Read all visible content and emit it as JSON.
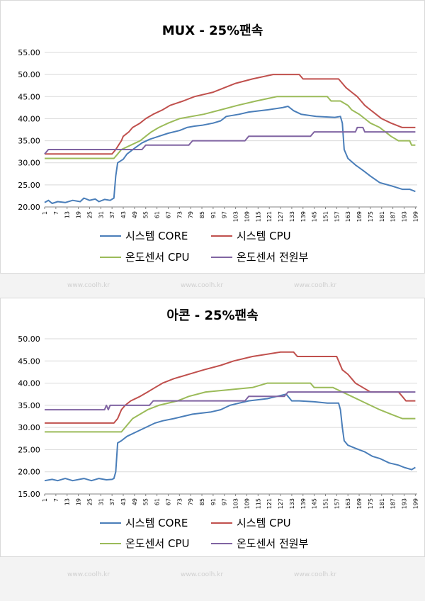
{
  "colors": {
    "core": "#4a7eb9",
    "cpu": "#c0504d",
    "sensor_cpu": "#9bbb59",
    "sensor_power": "#8064a2",
    "grid": "#d9d9d9"
  },
  "watermark": "www.coolh.kr",
  "chart_data": [
    {
      "type": "line",
      "title": "MUX - 25%팬속",
      "ylim": [
        20,
        55
      ],
      "yticks": [
        "20.00",
        "25.00",
        "30.00",
        "35.00",
        "40.00",
        "45.00",
        "50.00",
        "55.00"
      ],
      "xticks": [
        "1",
        "7",
        "13",
        "19",
        "25",
        "31",
        "37",
        "43",
        "49",
        "55",
        "61",
        "67",
        "73",
        "79",
        "85",
        "91",
        "97",
        "103",
        "109",
        "115",
        "121",
        "127",
        "133",
        "139",
        "145",
        "151",
        "157",
        "163",
        "169",
        "175",
        "181",
        "187",
        "193",
        "199"
      ],
      "grid": true,
      "legend_position": "bottom",
      "series": [
        {
          "name": "시스템 CORE",
          "color_key": "core",
          "points": [
            [
              1,
              21
            ],
            [
              3,
              21.5
            ],
            [
              5,
              20.8
            ],
            [
              8,
              21.2
            ],
            [
              12,
              21
            ],
            [
              16,
              21.5
            ],
            [
              20,
              21.2
            ],
            [
              22,
              22
            ],
            [
              25,
              21.5
            ],
            [
              28,
              21.8
            ],
            [
              30,
              21.2
            ],
            [
              33,
              21.7
            ],
            [
              36,
              21.5
            ],
            [
              38,
              22
            ],
            [
              39,
              27
            ],
            [
              40,
              30
            ],
            [
              43,
              30.8
            ],
            [
              45,
              32
            ],
            [
              49,
              33.3
            ],
            [
              53,
              34.5
            ],
            [
              57,
              35.3
            ],
            [
              62,
              36
            ],
            [
              67,
              36.7
            ],
            [
              73,
              37.3
            ],
            [
              77,
              38
            ],
            [
              81,
              38.3
            ],
            [
              85,
              38.5
            ],
            [
              91,
              39
            ],
            [
              95,
              39.5
            ],
            [
              98,
              40.5
            ],
            [
              105,
              41
            ],
            [
              110,
              41.5
            ],
            [
              120,
              42
            ],
            [
              128,
              42.5
            ],
            [
              131,
              42.8
            ],
            [
              134,
              41.8
            ],
            [
              138,
              41
            ],
            [
              146,
              40.5
            ],
            [
              156,
              40.3
            ],
            [
              159,
              40.5
            ],
            [
              160,
              39
            ],
            [
              161,
              33
            ],
            [
              163,
              31
            ],
            [
              167,
              29.5
            ],
            [
              171,
              28.3
            ],
            [
              175,
              27
            ],
            [
              180,
              25.5
            ],
            [
              186,
              24.8
            ],
            [
              192,
              24
            ],
            [
              196,
              24
            ],
            [
              199,
              23.5
            ]
          ]
        },
        {
          "name": "시스템 CPU",
          "color_key": "cpu",
          "points": [
            [
              1,
              32
            ],
            [
              37,
              32
            ],
            [
              39,
              33
            ],
            [
              42,
              35
            ],
            [
              43,
              36
            ],
            [
              46,
              37
            ],
            [
              48,
              38
            ],
            [
              52,
              39
            ],
            [
              55,
              40
            ],
            [
              59,
              41
            ],
            [
              64,
              42
            ],
            [
              68,
              43
            ],
            [
              75,
              44
            ],
            [
              81,
              45
            ],
            [
              91,
              46
            ],
            [
              97,
              47
            ],
            [
              103,
              48
            ],
            [
              112,
              49
            ],
            [
              123,
              50
            ],
            [
              137,
              50
            ],
            [
              139,
              49
            ],
            [
              158,
              49
            ],
            [
              160,
              48
            ],
            [
              162,
              47
            ],
            [
              165,
              46
            ],
            [
              168,
              45
            ],
            [
              170,
              44
            ],
            [
              172,
              43
            ],
            [
              175,
              42
            ],
            [
              178,
              41
            ],
            [
              181,
              40
            ],
            [
              186,
              39
            ],
            [
              192,
              38
            ],
            [
              199,
              38
            ]
          ]
        },
        {
          "name": "온도센서 CPU",
          "color_key": "sensor_cpu",
          "points": [
            [
              1,
              31
            ],
            [
              38,
              31
            ],
            [
              40,
              32
            ],
            [
              42,
              33
            ],
            [
              47,
              34
            ],
            [
              52,
              35
            ],
            [
              55,
              36
            ],
            [
              58,
              37
            ],
            [
              62,
              38
            ],
            [
              67,
              39
            ],
            [
              73,
              40
            ],
            [
              86,
              41
            ],
            [
              95,
              42
            ],
            [
              104,
              43
            ],
            [
              114,
              44
            ],
            [
              125,
              45
            ],
            [
              152,
              45
            ],
            [
              154,
              44
            ],
            [
              159,
              44
            ],
            [
              163,
              43
            ],
            [
              165,
              42
            ],
            [
              169,
              41
            ],
            [
              172,
              40
            ],
            [
              175,
              39
            ],
            [
              180,
              38
            ],
            [
              186,
              36
            ],
            [
              190,
              35
            ],
            [
              196,
              35
            ],
            [
              197,
              34
            ],
            [
              199,
              34
            ]
          ]
        },
        {
          "name": "온도센서 전원부",
          "color_key": "sensor_power",
          "points": [
            [
              1,
              32
            ],
            [
              3,
              33
            ],
            [
              53,
              33
            ],
            [
              55,
              34
            ],
            [
              78,
              34
            ],
            [
              80,
              35
            ],
            [
              108,
              35
            ],
            [
              110,
              36
            ],
            [
              143,
              36
            ],
            [
              145,
              37
            ],
            [
              167,
              37
            ],
            [
              168,
              38
            ],
            [
              171,
              38
            ],
            [
              172,
              37
            ],
            [
              199,
              37
            ]
          ]
        }
      ]
    },
    {
      "type": "line",
      "title": "아콘 - 25%팬속",
      "ylim": [
        15,
        50
      ],
      "yticks": [
        "15.00",
        "20.00",
        "25.00",
        "30.00",
        "35.00",
        "40.00",
        "45.00",
        "50.00"
      ],
      "xticks": [
        "1",
        "7",
        "13",
        "19",
        "25",
        "31",
        "37",
        "43",
        "49",
        "55",
        "61",
        "67",
        "73",
        "79",
        "85",
        "91",
        "97",
        "103",
        "109",
        "115",
        "121",
        "127",
        "133",
        "139",
        "145",
        "151",
        "157",
        "163",
        "169",
        "175",
        "181",
        "187",
        "193",
        "199"
      ],
      "grid": true,
      "legend_position": "bottom",
      "series": [
        {
          "name": "시스템 CORE",
          "color_key": "core",
          "points": [
            [
              1,
              18
            ],
            [
              5,
              18.3
            ],
            [
              8,
              18
            ],
            [
              12,
              18.5
            ],
            [
              16,
              18
            ],
            [
              22,
              18.5
            ],
            [
              26,
              18
            ],
            [
              30,
              18.5
            ],
            [
              34,
              18.2
            ],
            [
              37,
              18.3
            ],
            [
              38,
              18.5
            ],
            [
              39,
              20
            ],
            [
              40,
              26.5
            ],
            [
              42,
              27
            ],
            [
              45,
              28
            ],
            [
              50,
              29
            ],
            [
              55,
              30
            ],
            [
              60,
              31
            ],
            [
              64,
              31.5
            ],
            [
              70,
              32
            ],
            [
              75,
              32.5
            ],
            [
              80,
              33
            ],
            [
              90,
              33.5
            ],
            [
              95,
              34
            ],
            [
              100,
              35
            ],
            [
              105,
              35.5
            ],
            [
              110,
              36
            ],
            [
              120,
              36.5
            ],
            [
              125,
              37
            ],
            [
              130,
              37.5
            ],
            [
              133,
              36
            ],
            [
              137,
              36
            ],
            [
              145,
              35.8
            ],
            [
              152,
              35.5
            ],
            [
              158,
              35.5
            ],
            [
              159,
              34
            ],
            [
              160,
              30
            ],
            [
              161,
              27
            ],
            [
              163,
              26
            ],
            [
              167,
              25.3
            ],
            [
              172,
              24.5
            ],
            [
              176,
              23.5
            ],
            [
              180,
              23
            ],
            [
              185,
              22
            ],
            [
              190,
              21.5
            ],
            [
              193,
              21
            ],
            [
              197,
              20.5
            ],
            [
              199,
              21
            ]
          ]
        },
        {
          "name": "시스템 CPU",
          "color_key": "cpu",
          "points": [
            [
              1,
              31
            ],
            [
              38,
              31
            ],
            [
              40,
              32
            ],
            [
              42,
              34
            ],
            [
              44,
              35
            ],
            [
              47,
              36
            ],
            [
              52,
              37
            ],
            [
              56,
              38
            ],
            [
              60,
              39
            ],
            [
              64,
              40
            ],
            [
              70,
              41
            ],
            [
              78,
              42
            ],
            [
              86,
              43
            ],
            [
              95,
              44
            ],
            [
              102,
              45
            ],
            [
              112,
              46
            ],
            [
              127,
              47
            ],
            [
              134,
              47
            ],
            [
              136,
              46
            ],
            [
              157,
              46
            ],
            [
              158,
              45
            ],
            [
              160,
              43
            ],
            [
              163,
              42
            ],
            [
              165,
              41
            ],
            [
              167,
              40
            ],
            [
              171,
              39
            ],
            [
              175,
              38
            ],
            [
              190,
              38
            ],
            [
              192,
              37
            ],
            [
              194,
              36
            ],
            [
              199,
              36
            ]
          ]
        },
        {
          "name": "온도센서 CPU",
          "color_key": "sensor_cpu",
          "points": [
            [
              1,
              29
            ],
            [
              42,
              29
            ],
            [
              44,
              30
            ],
            [
              48,
              32
            ],
            [
              52,
              33
            ],
            [
              56,
              34
            ],
            [
              62,
              35
            ],
            [
              72,
              36
            ],
            [
              78,
              37
            ],
            [
              87,
              38
            ],
            [
              112,
              39
            ],
            [
              120,
              40
            ],
            [
              143,
              40
            ],
            [
              145,
              39
            ],
            [
              155,
              39
            ],
            [
              160,
              38
            ],
            [
              165,
              37
            ],
            [
              170,
              36
            ],
            [
              175,
              35
            ],
            [
              180,
              34
            ],
            [
              186,
              33
            ],
            [
              192,
              32
            ],
            [
              199,
              32
            ]
          ]
        },
        {
          "name": "온도센서 전원부",
          "color_key": "sensor_power",
          "points": [
            [
              1,
              34
            ],
            [
              33,
              34
            ],
            [
              34,
              35
            ],
            [
              35,
              34
            ],
            [
              36,
              35
            ],
            [
              57,
              35
            ],
            [
              59,
              36
            ],
            [
              108,
              36
            ],
            [
              110,
              37
            ],
            [
              129,
              37
            ],
            [
              131,
              38
            ],
            [
              199,
              38
            ]
          ]
        }
      ]
    }
  ]
}
